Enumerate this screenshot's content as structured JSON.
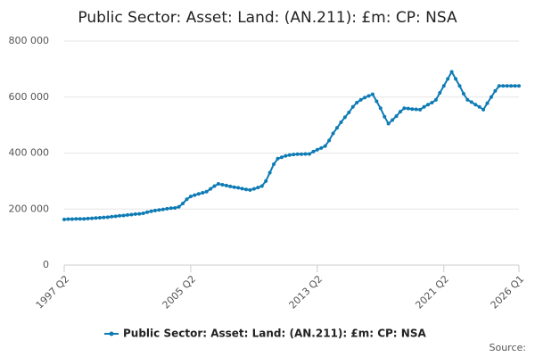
{
  "chart_data": {
    "type": "line",
    "title": "Public Sector: Asset: Land: (AN.211): £m: CP: NSA",
    "source": "Source:",
    "categories": [
      "1997 Q2",
      null,
      null,
      null,
      null,
      null,
      null,
      null,
      null,
      null,
      null,
      null,
      null,
      null,
      null,
      null,
      null,
      null,
      null,
      null,
      null,
      null,
      null,
      null,
      null,
      null,
      null,
      null,
      null,
      null,
      null,
      null,
      "2005 Q2",
      null,
      null,
      null,
      null,
      null,
      null,
      null,
      null,
      null,
      null,
      null,
      null,
      null,
      null,
      null,
      null,
      null,
      null,
      null,
      null,
      null,
      null,
      null,
      null,
      null,
      null,
      null,
      null,
      null,
      null,
      null,
      "2013 Q2",
      null,
      null,
      null,
      null,
      null,
      null,
      null,
      null,
      null,
      null,
      null,
      null,
      null,
      null,
      null,
      null,
      null,
      null,
      null,
      null,
      null,
      null,
      null,
      null,
      null,
      null,
      null,
      null,
      null,
      null,
      null,
      "2021 Q2",
      null,
      null,
      null,
      null,
      null,
      null,
      null,
      null,
      null,
      null,
      null,
      null,
      null,
      null,
      null,
      null,
      null,
      null,
      "2026 Q1"
    ],
    "series": [
      {
        "name": "Public Sector: Asset: Land: (AN.211): £m: CP: NSA",
        "color": "#0e7bb5",
        "values": [
          163000,
          164000,
          164000,
          165000,
          165000,
          165000,
          166000,
          167000,
          168000,
          169000,
          170000,
          171000,
          173000,
          174000,
          176000,
          177000,
          179000,
          180000,
          182000,
          183000,
          185000,
          189000,
          192000,
          195000,
          197000,
          199000,
          201000,
          203000,
          204000,
          208000,
          220000,
          235000,
          245000,
          250000,
          254000,
          258000,
          262000,
          272000,
          282000,
          290000,
          287000,
          284000,
          281000,
          278000,
          276000,
          273000,
          270000,
          268000,
          272000,
          277000,
          282000,
          300000,
          330000,
          360000,
          380000,
          385000,
          390000,
          393000,
          395000,
          396000,
          396000,
          397000,
          397000,
          405000,
          412000,
          418000,
          425000,
          445000,
          470000,
          490000,
          510000,
          528000,
          545000,
          565000,
          580000,
          590000,
          598000,
          604000,
          610000,
          585000,
          560000,
          530000,
          505000,
          518000,
          532000,
          548000,
          560000,
          559000,
          557000,
          556000,
          555000,
          565000,
          573000,
          580000,
          590000,
          615000,
          640000,
          665000,
          690000,
          665000,
          640000,
          612000,
          590000,
          582000,
          573000,
          565000,
          555000,
          578000,
          600000,
          622000,
          640000,
          640000,
          640000,
          640000,
          640000,
          640000
        ]
      }
    ],
    "ylim": [
      0,
      800000
    ],
    "yticks": [
      0,
      {
        "value": 200000,
        "label": "200 000"
      },
      {
        "value": 400000,
        "label": "400 000"
      },
      {
        "value": 600000,
        "label": "600 000"
      },
      {
        "value": 800000,
        "label": "800 000"
      }
    ],
    "grid": true
  }
}
